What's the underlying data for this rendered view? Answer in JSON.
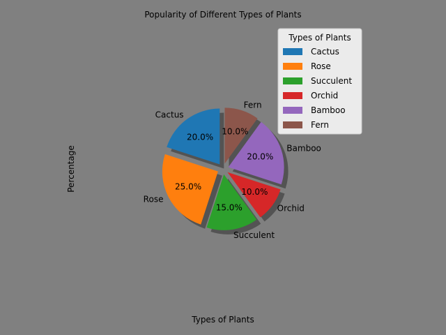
{
  "chart_data": {
    "type": "pie",
    "title": "Popularity of Different Types of Plants",
    "xlabel": "Types of Plants",
    "ylabel": "Percentage",
    "categories": [
      "Cactus",
      "Rose",
      "Succulent",
      "Orchid",
      "Bamboo",
      "Fern"
    ],
    "values": [
      20,
      25,
      15,
      10,
      20,
      10
    ],
    "value_labels": [
      "20.0%",
      "25.0%",
      "15.0%",
      "10.0%",
      "20.0%",
      "10.0%"
    ],
    "colors": [
      "#1f77b4",
      "#ff7f0e",
      "#2ca02c",
      "#d62728",
      "#9467bd",
      "#8c564b"
    ],
    "explode": [
      0.1,
      0.1,
      0.1,
      0.1,
      0.1,
      0.1
    ],
    "start_angle": 90,
    "direction": "counterclockwise",
    "shadow": true,
    "legend": {
      "title": "Types of Plants",
      "entries": [
        "Cactus",
        "Rose",
        "Succulent",
        "Orchid",
        "Bamboo",
        "Fern"
      ],
      "position": "upper-right"
    },
    "background_color": "#808080"
  }
}
